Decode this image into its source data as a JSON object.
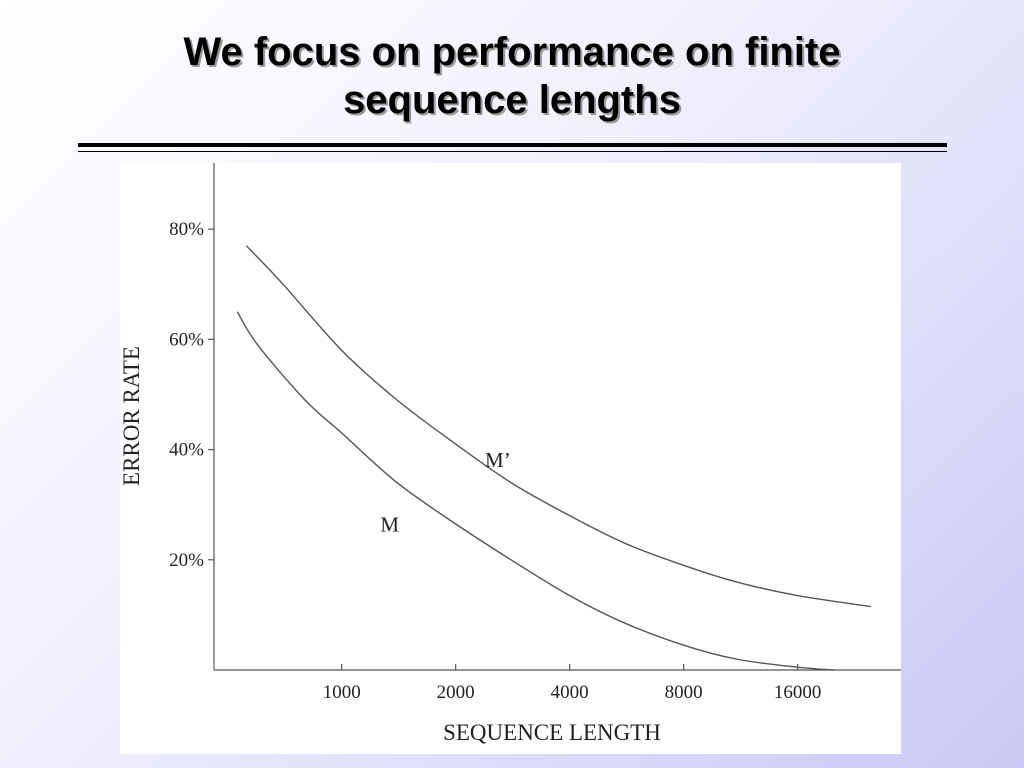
{
  "slide": {
    "title_line1": "We focus on performance on finite",
    "title_line2": "sequence lengths"
  },
  "chart_data": {
    "type": "line",
    "title": "",
    "xlabel": "SEQUENCE LENGTH",
    "ylabel": "ERROR RATE",
    "x_scale": "log2",
    "x_ticks": [
      1000,
      2000,
      4000,
      8000,
      16000
    ],
    "x_tick_labels": [
      "1000",
      "2000",
      "4000",
      "8000",
      "16000"
    ],
    "y_ticks": [
      20,
      40,
      60,
      80
    ],
    "y_tick_labels": [
      "20%",
      "40%",
      "60%",
      "80%"
    ],
    "xlim": [
      460,
      30000
    ],
    "ylim": [
      0,
      92
    ],
    "grid": false,
    "line_color": "#555555",
    "series": [
      {
        "name": "M'",
        "x": [
          560,
          700,
          1000,
          1400,
          2000,
          2800,
          4000,
          5600,
          8000,
          11000,
          16000,
          25000
        ],
        "y": [
          77,
          70,
          58,
          49,
          41,
          34,
          28,
          23,
          19,
          16,
          13.5,
          11.5
        ]
      },
      {
        "name": "M",
        "x": [
          530,
          600,
          800,
          1000,
          1400,
          2000,
          2800,
          4000,
          5600,
          8000,
          11000,
          16000,
          20000
        ],
        "y": [
          65,
          59,
          49,
          43,
          34,
          26.5,
          20,
          13.5,
          8.5,
          4.5,
          2,
          0.5,
          0
        ]
      }
    ]
  }
}
